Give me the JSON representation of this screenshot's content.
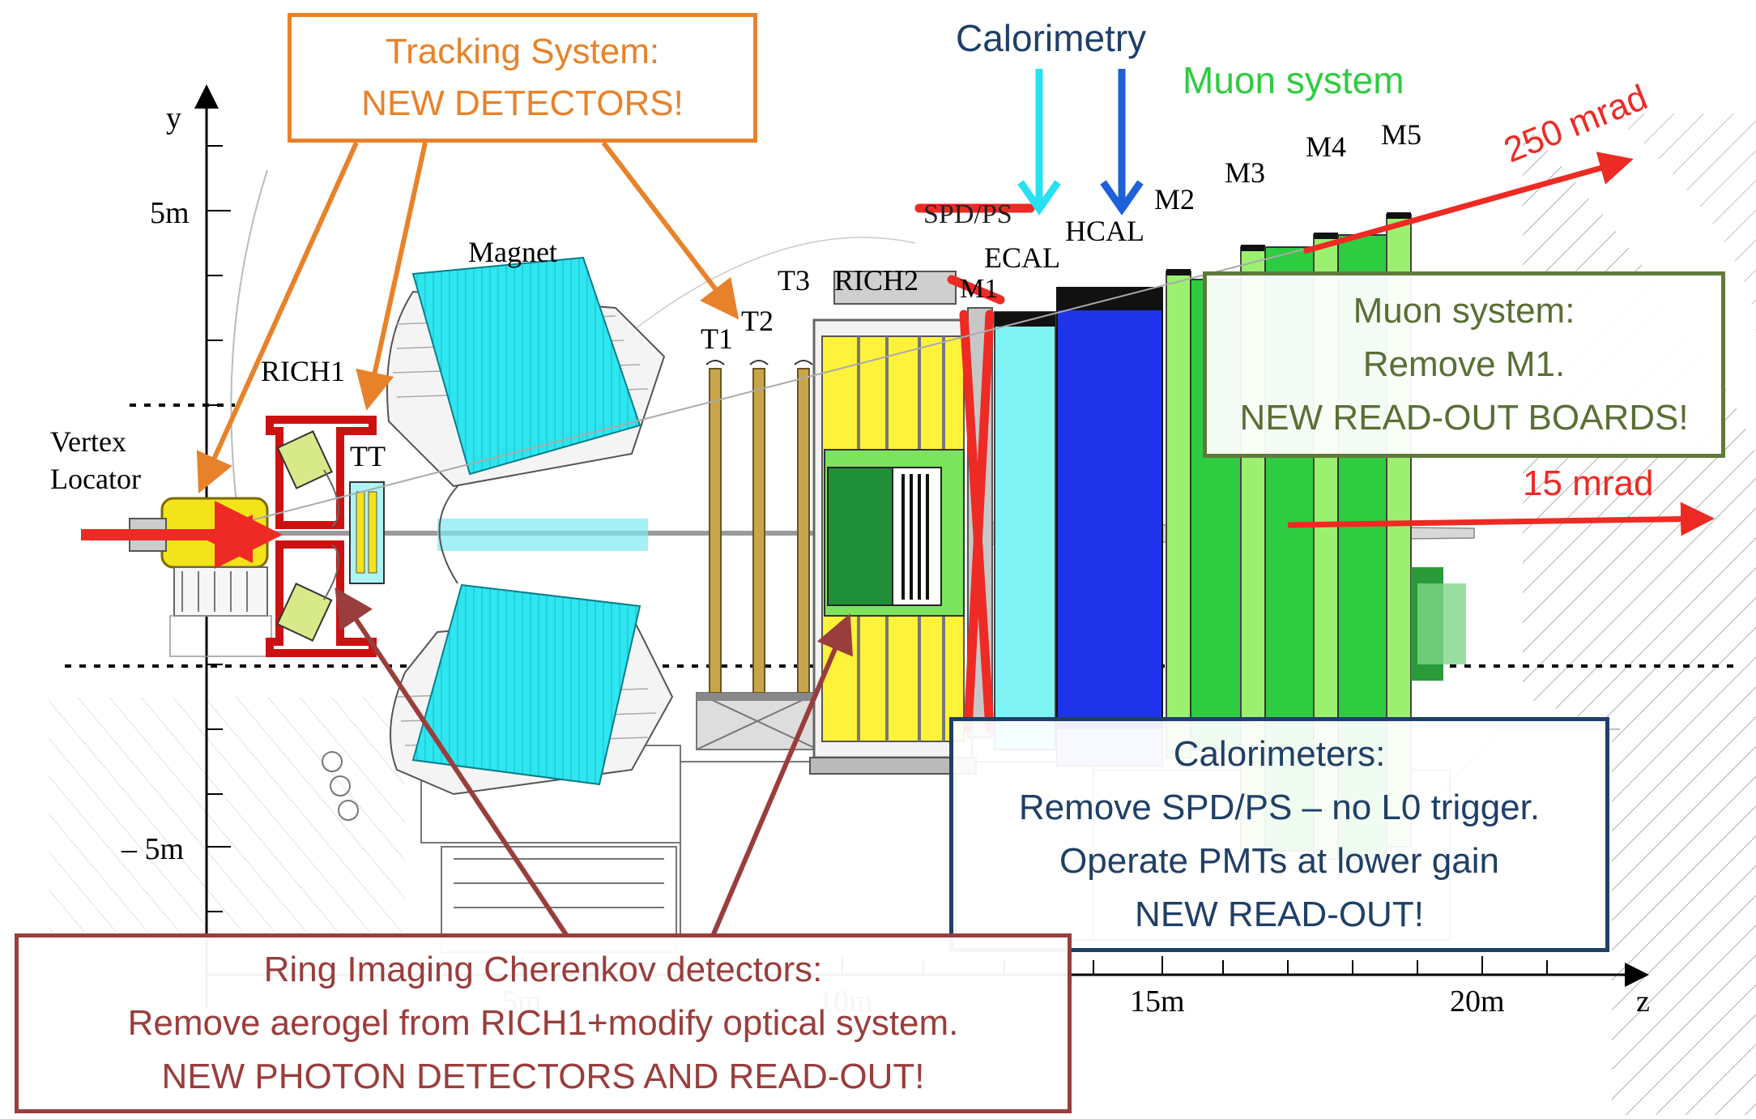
{
  "axis": {
    "y_label": "y",
    "z_label": "z",
    "y_ticks": [
      "5m",
      "– 5m"
    ],
    "z_ticks": [
      "5m",
      "10m",
      "15m",
      "20m"
    ]
  },
  "detector_labels": {
    "vertex_locator_line1": "Vertex",
    "vertex_locator_line2": "Locator",
    "rich1": "RICH1",
    "tt": "TT",
    "magnet": "Magnet",
    "t1": "T1",
    "t2": "T2",
    "t3": "T3",
    "rich2": "RICH2",
    "spd_ps": "SPD/PS",
    "m1": "M1",
    "ecal": "ECAL",
    "hcal": "HCAL",
    "m2": "M2",
    "m3": "M3",
    "m4": "M4",
    "m5": "M5"
  },
  "titles": {
    "calorimetry": "Calorimetry",
    "muon_system": "Muon system"
  },
  "angles": {
    "wide": "250 mrad",
    "narrow": "15 mrad"
  },
  "callouts": {
    "tracking": [
      "Tracking System:",
      "NEW DETECTORS!"
    ],
    "muon": [
      "Muon system:",
      "Remove M1.",
      "NEW READ-OUT BOARDS!"
    ],
    "calorimeters": [
      "Calorimeters:",
      "Remove SPD/PS – no L0 trigger.",
      "Operate PMTs at lower gain",
      "NEW READ-OUT!"
    ],
    "rich": [
      "Ring Imaging Cherenkov detectors:",
      "Remove aerogel from RICH1+modify optical system.",
      "NEW PHOTON DETECTORS AND READ-OUT!"
    ]
  },
  "colors": {
    "tracking": "#e8822a",
    "muon_box": "#5f7a3a",
    "calorimeters": "#1f3f66",
    "rich": "#9a3d3d",
    "muon_green": "#2ecc40",
    "arrow_red": "#ee2a24",
    "magnet_cyan": "#2ee6f0",
    "rich2_yellow": "#fff23a",
    "ecal_cyan": "#7ff3f3",
    "hcal_blue": "#1e34e8",
    "rich2_green": "#1f8f3a"
  }
}
